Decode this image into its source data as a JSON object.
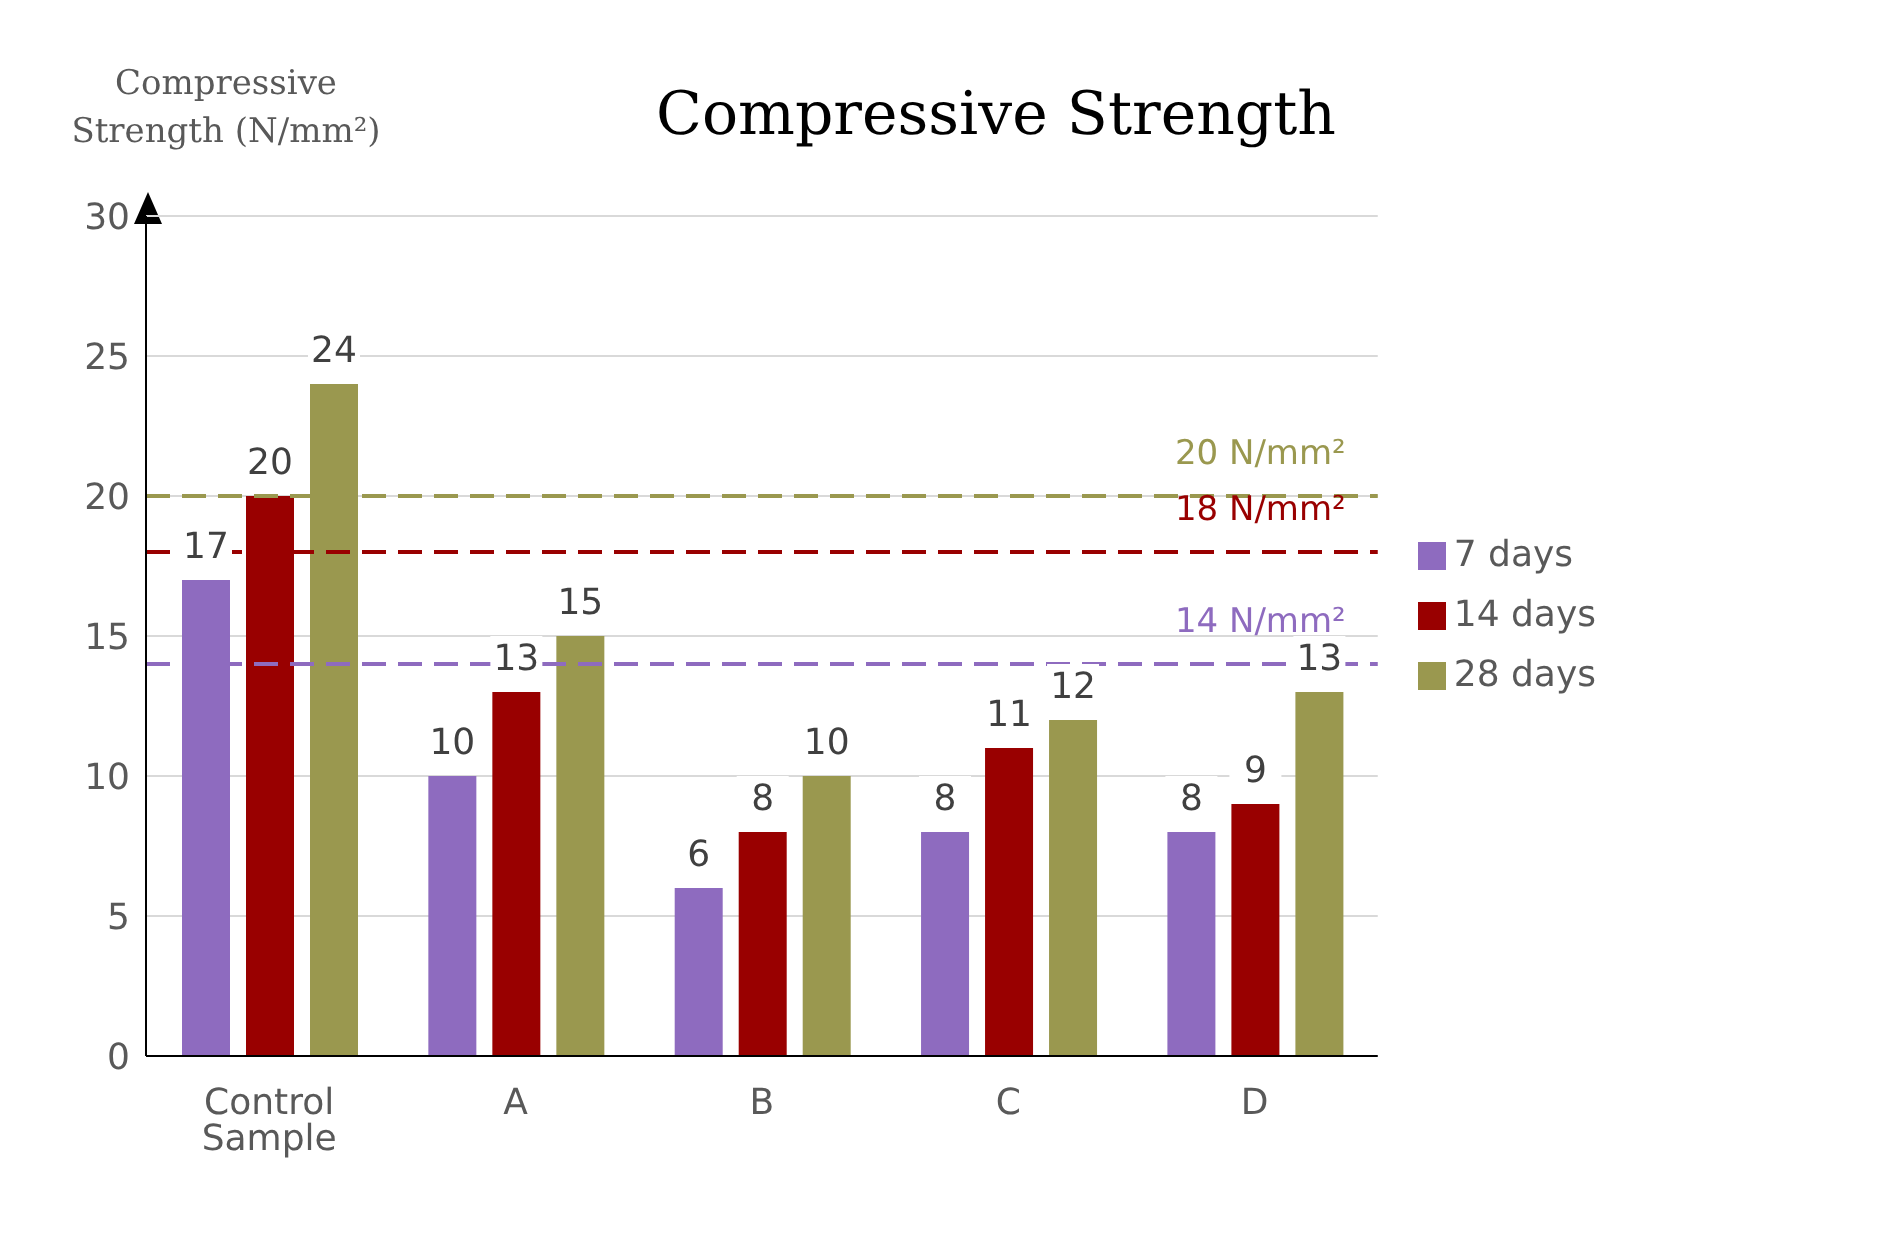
{
  "chart_data": {
    "type": "bar",
    "title": "Compressive Strength",
    "ylabel": "Compressive Strength (N/mm²)",
    "categories": [
      "Control Sample",
      "A",
      "B",
      "C",
      "D"
    ],
    "series": [
      {
        "name": "7 days",
        "color": "#8e6bbf",
        "values": [
          17,
          10,
          6,
          8,
          8
        ]
      },
      {
        "name": "14 days",
        "color": "#990000",
        "values": [
          20,
          13,
          8,
          11,
          9
        ]
      },
      {
        "name": "28 days",
        "color": "#9a984f",
        "values": [
          24,
          15,
          10,
          12,
          13
        ]
      }
    ],
    "ylim": [
      0,
      30
    ],
    "yticks": [
      0,
      5,
      10,
      15,
      20,
      25,
      30
    ],
    "grid": "y",
    "legend": "right",
    "data_labels": true,
    "ref_lines": [
      {
        "axis": "y",
        "value": 20,
        "label": "20 N/mm²",
        "color": "#9a984f",
        "line_style": "dashed"
      },
      {
        "axis": "y",
        "value": 18,
        "label": "18 N/mm²",
        "color": "#990000",
        "line_style": "dashed"
      },
      {
        "axis": "y",
        "value": 14,
        "label": "14 N/mm²",
        "color": "#8e6bbf",
        "line_style": "dashed"
      }
    ]
  }
}
